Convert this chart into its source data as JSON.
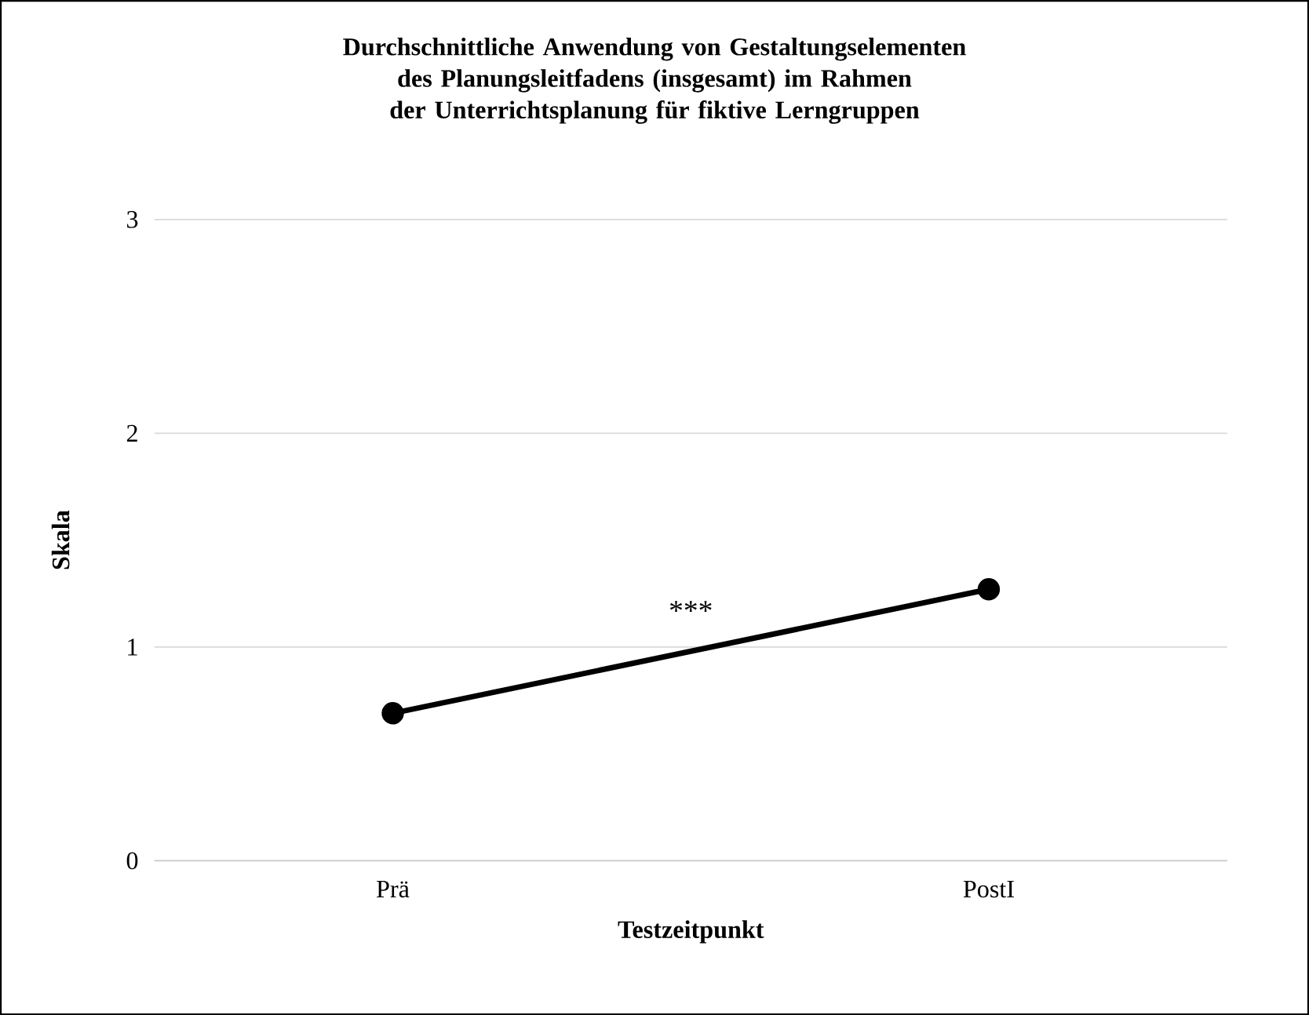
{
  "chart_data": {
    "type": "line",
    "title": "Durchschnittliche Anwendung von Gestaltungselementen des Planungsleitfadens (insgesamt) im Rahmen der Unterrichtsplanung für fiktive Lerngruppen",
    "xlabel": "Testzeitpunkt",
    "ylabel": "Skala",
    "categories": [
      "Prä",
      "PostI"
    ],
    "values": [
      0.69,
      1.27
    ],
    "color": "#000000",
    "ylim": [
      0,
      3
    ],
    "yticks": [
      0,
      1,
      2,
      3
    ],
    "grid": "y",
    "marker": "circle",
    "line_style": "solid",
    "annotations": [
      "***"
    ]
  }
}
